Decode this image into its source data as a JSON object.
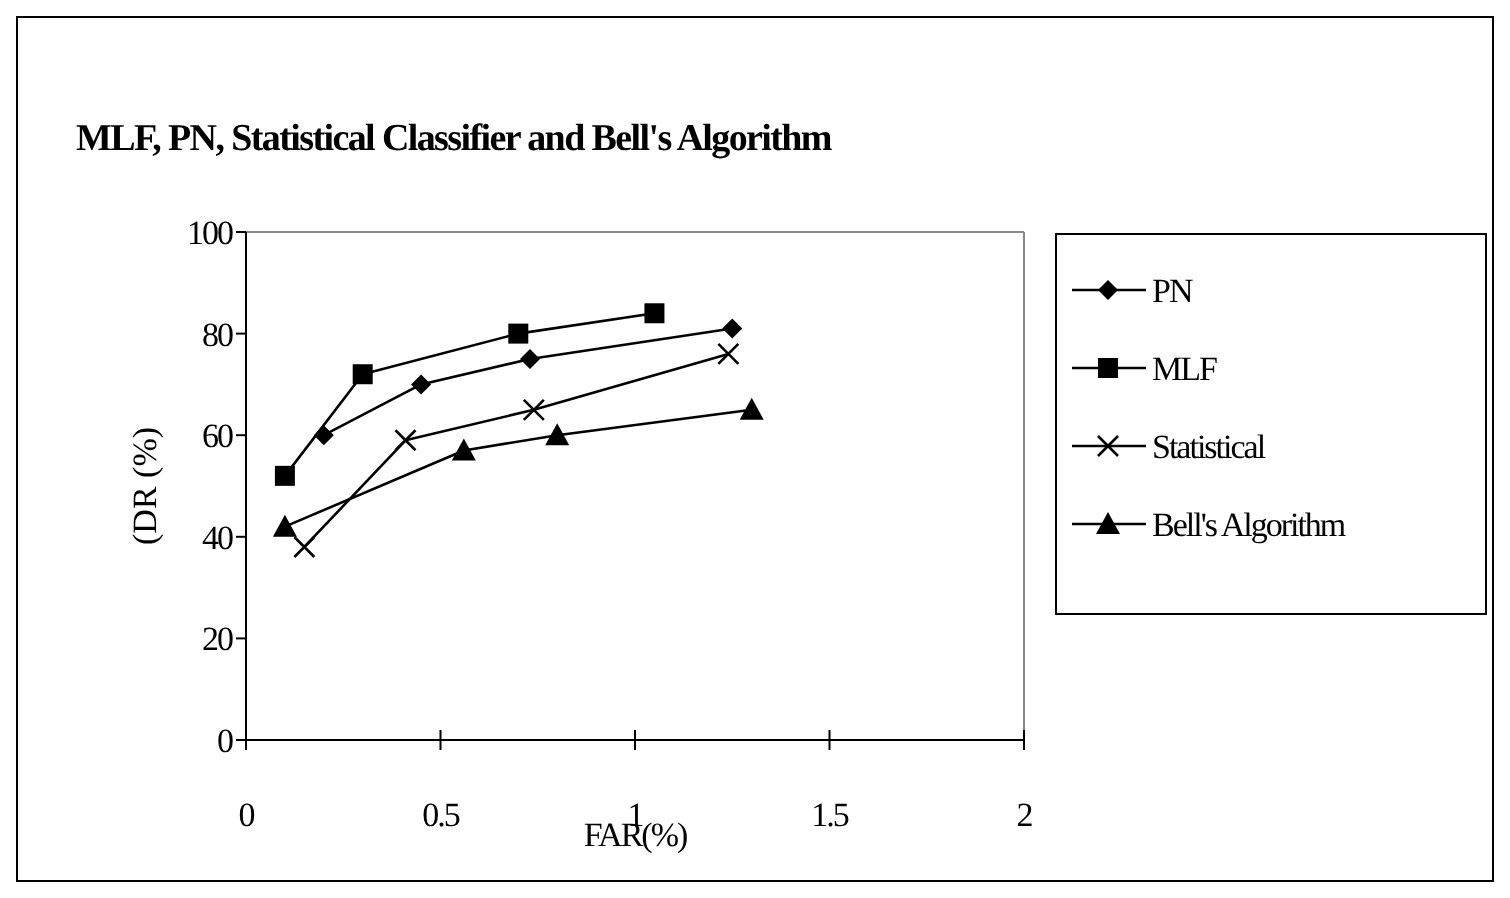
{
  "chart_data": {
    "type": "line",
    "title": "MLF, PN, Statistical Classifier and Bell's Algorithm",
    "xlabel": "FAR(%)",
    "ylabel": "(DR (%)",
    "xlim": [
      0,
      2
    ],
    "xticks": [
      0,
      0.5,
      1,
      1.5,
      2
    ],
    "ylim": [
      0,
      100
    ],
    "yticks": [
      0,
      20,
      40,
      60,
      80,
      100
    ],
    "legend": "right",
    "grid": false,
    "series": [
      {
        "name": "PN",
        "color": "#000000",
        "marker": "diamond",
        "x": [
          0.2,
          0.45,
          0.73,
          1.25
        ],
        "values": [
          60,
          70,
          75,
          81
        ]
      },
      {
        "name": "MLF",
        "color": "#000000",
        "marker": "square",
        "x": [
          0.1,
          0.3,
          0.7,
          1.05
        ],
        "values": [
          52,
          72,
          80,
          84
        ]
      },
      {
        "name": "Statistical",
        "color": "#000000",
        "marker": "cross",
        "x": [
          0.15,
          0.41,
          0.74,
          1.24
        ],
        "values": [
          38,
          59,
          65,
          76
        ]
      },
      {
        "name": "Bell's Algorithm",
        "color": "#000000",
        "marker": "triangle",
        "x": [
          0.1,
          0.56,
          0.8,
          1.3
        ],
        "values": [
          42,
          57,
          60,
          65
        ]
      }
    ]
  }
}
